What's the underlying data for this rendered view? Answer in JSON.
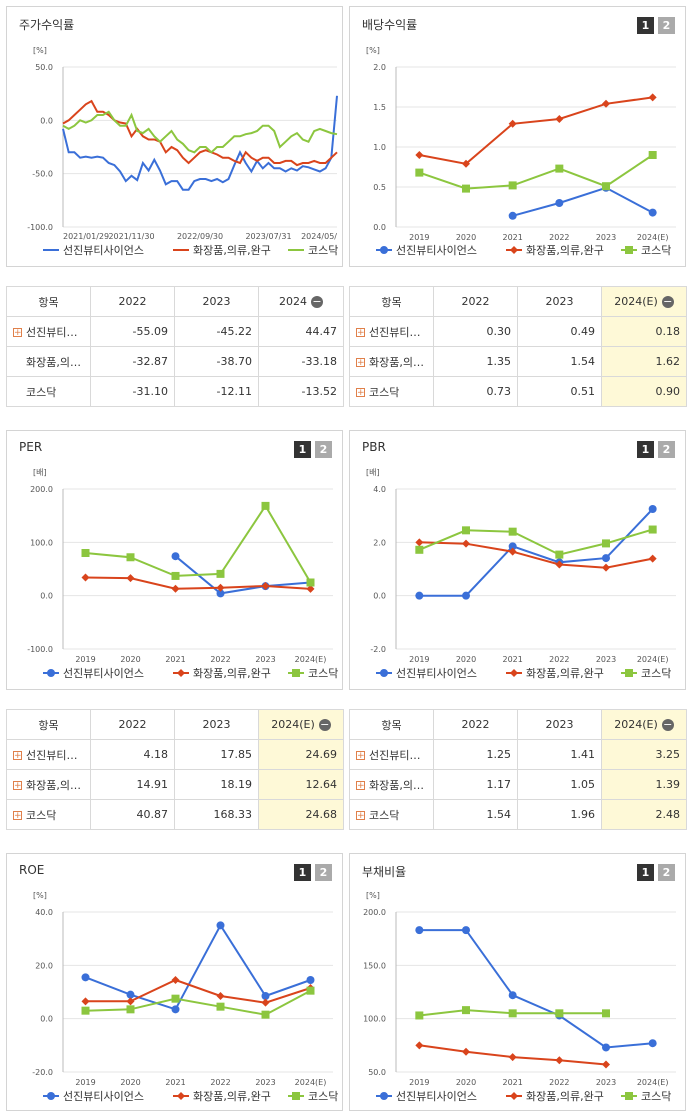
{
  "colors": {
    "series1": "#3a6fd8",
    "series2": "#d9441c",
    "series3": "#8cc63f",
    "grid": "#e4e4e4",
    "highlight": "#fef9d7"
  },
  "panels": {
    "price": {
      "title": "주가수익률",
      "unit": "[%]"
    },
    "dividend": {
      "title": "배당수익률",
      "unit": "[%]",
      "btn1": "1",
      "btn2": "2"
    },
    "per": {
      "title": "PER",
      "unit": "[배]",
      "btn1": "1",
      "btn2": "2"
    },
    "pbr": {
      "title": "PBR",
      "unit": "[배]",
      "btn1": "1",
      "btn2": "2"
    },
    "roe": {
      "title": "ROE",
      "unit": "[%]",
      "btn1": "1",
      "btn2": "2"
    },
    "debt": {
      "title": "부채비율",
      "unit": "[%]",
      "btn1": "1",
      "btn2": "2"
    }
  },
  "legend": [
    "선진뷰티사이언스",
    "화장품,의류,완구",
    "코스닥"
  ],
  "tables": {
    "price": {
      "header": [
        "항목",
        "2022",
        "2023",
        "2024"
      ],
      "rows": [
        {
          "name": "선진뷰티…",
          "plus": true,
          "v": [
            "-55.09",
            "-45.22",
            "44.47"
          ]
        },
        {
          "name": "화장품,의…",
          "plus": false,
          "v": [
            "-32.87",
            "-38.70",
            "-33.18"
          ]
        },
        {
          "name": "코스닥",
          "plus": false,
          "v": [
            "-31.10",
            "-12.11",
            "-13.52"
          ]
        }
      ]
    },
    "dividend": {
      "header": [
        "항목",
        "2022",
        "2023",
        "2024(E)"
      ],
      "rows": [
        {
          "name": "선진뷰티…",
          "plus": true,
          "v": [
            "0.30",
            "0.49",
            "0.18"
          ]
        },
        {
          "name": "화장품,의…",
          "plus": true,
          "v": [
            "1.35",
            "1.54",
            "1.62"
          ]
        },
        {
          "name": "코스닥",
          "plus": true,
          "v": [
            "0.73",
            "0.51",
            "0.90"
          ]
        }
      ]
    },
    "per": {
      "header": [
        "항목",
        "2022",
        "2023",
        "2024(E)"
      ],
      "rows": [
        {
          "name": "선진뷰티…",
          "plus": true,
          "v": [
            "4.18",
            "17.85",
            "24.69"
          ]
        },
        {
          "name": "화장품,의…",
          "plus": true,
          "v": [
            "14.91",
            "18.19",
            "12.64"
          ]
        },
        {
          "name": "코스닥",
          "plus": true,
          "v": [
            "40.87",
            "168.33",
            "24.68"
          ]
        }
      ]
    },
    "pbr": {
      "header": [
        "항목",
        "2022",
        "2023",
        "2024(E)"
      ],
      "rows": [
        {
          "name": "선진뷰티…",
          "plus": true,
          "v": [
            "1.25",
            "1.41",
            "3.25"
          ]
        },
        {
          "name": "화장품,의…",
          "plus": true,
          "v": [
            "1.17",
            "1.05",
            "1.39"
          ]
        },
        {
          "name": "코스닥",
          "plus": true,
          "v": [
            "1.54",
            "1.96",
            "2.48"
          ]
        }
      ]
    }
  },
  "chart_data": [
    {
      "id": "price",
      "type": "line",
      "ylim": [
        -100,
        50
      ],
      "yticks": [
        "50.0",
        "0.0",
        "-50.0",
        "-100.0"
      ],
      "xticks": [
        "2021/01/29",
        "2021/11/30",
        "2022/09/30",
        "2023/07/31",
        "2024/05/"
      ],
      "series": [
        {
          "name": "선진뷰티사이언스",
          "values": [
            -8,
            -30,
            -30,
            -35,
            -34,
            -35,
            -34,
            -35,
            -40,
            -42,
            -48,
            -57,
            -52,
            -56,
            -40,
            -47,
            -37,
            -47,
            -60,
            -57,
            -57,
            -65,
            -65,
            -57,
            -55,
            -55,
            -57,
            -55,
            -58,
            -55,
            -42,
            -30,
            -40,
            -48,
            -38,
            -45,
            -40,
            -45,
            -45,
            -48,
            -45,
            -47,
            -43,
            -44,
            -46,
            -48,
            -45,
            -35,
            23
          ]
        },
        {
          "name": "화장품,의류,완구",
          "values": [
            -3,
            0,
            5,
            10,
            15,
            18,
            8,
            8,
            5,
            0,
            -2,
            -3,
            -15,
            -8,
            -15,
            -18,
            -18,
            -20,
            -30,
            -25,
            -28,
            -35,
            -40,
            -35,
            -30,
            -28,
            -30,
            -32,
            -35,
            -35,
            -38,
            -40,
            -30,
            -35,
            -38,
            -35,
            -35,
            -40,
            -40,
            -38,
            -38,
            -42,
            -40,
            -40,
            -38,
            -40,
            -40,
            -35,
            -30
          ]
        },
        {
          "name": "코스닥",
          "values": [
            -5,
            -8,
            -5,
            0,
            -2,
            0,
            5,
            5,
            8,
            0,
            -5,
            -5,
            5,
            -10,
            -12,
            -8,
            -15,
            -20,
            -15,
            -10,
            -18,
            -22,
            -28,
            -30,
            -25,
            -25,
            -30,
            -25,
            -25,
            -20,
            -15,
            -15,
            -13,
            -12,
            -10,
            -5,
            -5,
            -10,
            -25,
            -20,
            -15,
            -12,
            -18,
            -20,
            -10,
            -8,
            -10,
            -12,
            -13
          ]
        }
      ]
    },
    {
      "id": "dividend",
      "type": "line",
      "categories": [
        "2019",
        "2020",
        "2021",
        "2022",
        "2023",
        "2024(E)"
      ],
      "ylim": [
        0,
        2
      ],
      "yticks": [
        "2.0",
        "1.5",
        "1.0",
        "0.5",
        "0.0"
      ],
      "series": [
        {
          "name": "선진뷰티사이언스",
          "values": [
            null,
            null,
            0.14,
            0.3,
            0.49,
            0.18
          ]
        },
        {
          "name": "화장품,의류,완구",
          "values": [
            0.9,
            0.79,
            1.29,
            1.35,
            1.54,
            1.62
          ]
        },
        {
          "name": "코스닥",
          "values": [
            0.68,
            0.48,
            0.52,
            0.73,
            0.51,
            0.9
          ]
        }
      ]
    },
    {
      "id": "per",
      "type": "line",
      "categories": [
        "2019",
        "2020",
        "2021",
        "2022",
        "2023",
        "2024(E)"
      ],
      "ylim": [
        -100,
        200
      ],
      "yticks": [
        "200.0",
        "100.0",
        "0.0",
        "-100.0"
      ],
      "series": [
        {
          "name": "선진뷰티사이언스",
          "values": [
            null,
            null,
            74,
            4.18,
            17.85,
            24.69
          ]
        },
        {
          "name": "화장품,의류,완구",
          "values": [
            34,
            33,
            13,
            14.91,
            18.19,
            12.64
          ]
        },
        {
          "name": "코스닥",
          "values": [
            80,
            72,
            37,
            40.87,
            168.33,
            24.68
          ]
        }
      ]
    },
    {
      "id": "pbr",
      "type": "line",
      "categories": [
        "2019",
        "2020",
        "2021",
        "2022",
        "2023",
        "2024(E)"
      ],
      "ylim": [
        -2,
        4
      ],
      "yticks": [
        "4.0",
        "2.0",
        "0.0",
        "-2.0"
      ],
      "series": [
        {
          "name": "선진뷰티사이언스",
          "values": [
            0,
            0,
            1.85,
            1.25,
            1.41,
            3.25
          ]
        },
        {
          "name": "화장품,의류,완구",
          "values": [
            2.0,
            1.95,
            1.65,
            1.17,
            1.05,
            1.39
          ]
        },
        {
          "name": "코스닥",
          "values": [
            1.72,
            2.45,
            2.4,
            1.54,
            1.96,
            2.48
          ]
        }
      ]
    },
    {
      "id": "roe",
      "type": "line",
      "categories": [
        "2019",
        "2020",
        "2021",
        "2022",
        "2023",
        "2024(E)"
      ],
      "ylim": [
        -20,
        40
      ],
      "yticks": [
        "40.0",
        "20.0",
        "0.0",
        "-20.0"
      ],
      "series": [
        {
          "name": "선진뷰티사이언스",
          "values": [
            15.5,
            9,
            3.5,
            35,
            8.5,
            14.5
          ]
        },
        {
          "name": "화장품,의류,완구",
          "values": [
            6.5,
            6.5,
            14.5,
            8.5,
            6,
            11.5
          ]
        },
        {
          "name": "코스닥",
          "values": [
            3,
            3.5,
            7.5,
            4.5,
            1.5,
            10.5
          ]
        }
      ]
    },
    {
      "id": "debt",
      "type": "line",
      "categories": [
        "2019",
        "2020",
        "2021",
        "2022",
        "2023",
        "2024(E)"
      ],
      "ylim": [
        50,
        200
      ],
      "yticks": [
        "200.0",
        "150.0",
        "100.0",
        "50.0"
      ],
      "series": [
        {
          "name": "선진뷰티사이언스",
          "values": [
            183,
            183,
            122,
            103,
            73,
            77
          ]
        },
        {
          "name": "화장품,의류,완구",
          "values": [
            75,
            69,
            64,
            61,
            57,
            null
          ]
        },
        {
          "name": "코스닥",
          "values": [
            103,
            108,
            105,
            105,
            105,
            null
          ]
        }
      ]
    }
  ]
}
